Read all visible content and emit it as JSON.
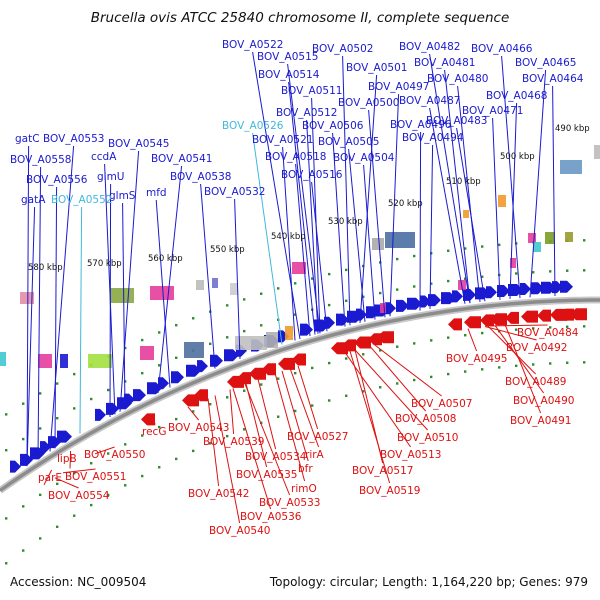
{
  "title": "Brucella ovis ATCC 25840 chromosome II, complete sequence",
  "footer": {
    "accession": "Accession: NC_009504",
    "topology": "Topology: circular; Length: 1,164,220 bp; Genes: 979"
  },
  "scale_labels": [
    "490 kbp",
    "500 kbp",
    "510 kbp",
    "520 kbp",
    "530 kbp",
    "540 kbp",
    "550 kbp",
    "560 kbp",
    "570 kbp",
    "580 kbp"
  ],
  "colors": {
    "forward_strand": "#1a1ad0",
    "reverse_strand": "#dd1111",
    "backbone": "#8c8c8c",
    "tick": "#2e8b2e",
    "highlight_cyan": "#3fb9dd"
  },
  "forward_gene_labels": [
    "BOV_A0522",
    "BOV_A0515",
    "BOV_A0502",
    "BOV_A0482",
    "BOV_A0466",
    "BOV_A0514",
    "BOV_A0501",
    "BOV_A0481",
    "BOV_A0465",
    "BOV_A0497",
    "BOV_A0480",
    "BOV_A0464",
    "BOV_A0511",
    "BOV_A0500",
    "BOV_A0487",
    "BOV_A0468",
    "BOV_A0512",
    "BOV_A0471",
    "BOV_A0526",
    "BOV_A0506",
    "BOV_A0496",
    "BOV_A0483",
    "BOV_A0553",
    "BOV_A0521",
    "BOV_A0505",
    "BOV_A0494",
    "gatC",
    "BOV_A0545",
    "ccdA",
    "BOV_A0518",
    "BOV_A0504",
    "BOV_A0558",
    "BOV_A0541",
    "glmU",
    "BOV_A0516",
    "BOV_A0556",
    "BOV_A0538",
    "glmS",
    "mfd",
    "BOV_A0532",
    "gatA",
    "BOV_A0552"
  ],
  "reverse_gene_labels": [
    "BOV_A0484",
    "BOV_A0492",
    "BOV_A0495",
    "BOV_A0489",
    "BOV_A0490",
    "BOV_A0491",
    "BOV_A0507",
    "BOV_A0508",
    "BOV_A0543",
    "BOV_A0527",
    "BOV_A0510",
    "BOV_A0539",
    "recG",
    "BOV_A0534",
    "rirA",
    "BOV_A0513",
    "BOV_A0550",
    "lipB",
    "bfr",
    "BOV_A0535",
    "BOV_A0517",
    "BOV_A0551",
    "parE",
    "rimO",
    "BOV_A0533",
    "BOV_A0519",
    "BOV_A0542",
    "BOV_A0554",
    "BOV_A0536",
    "BOV_A0540"
  ]
}
